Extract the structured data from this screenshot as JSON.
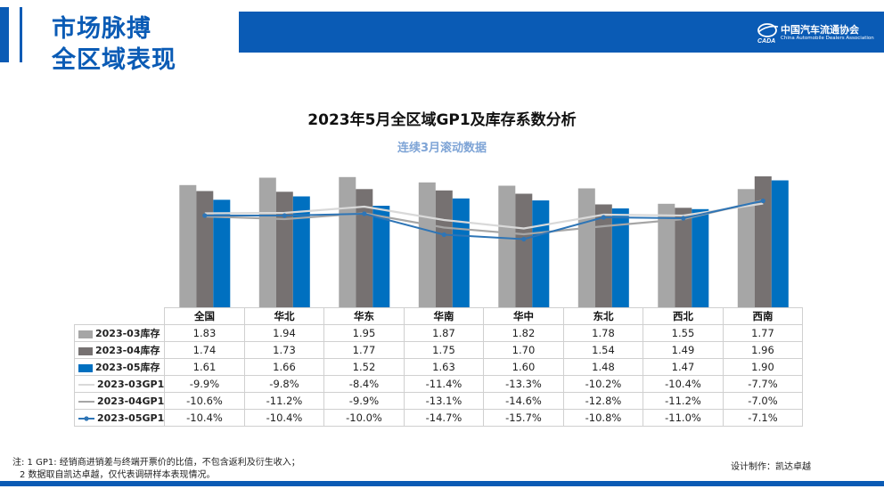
{
  "header": {
    "title_line1": "市场脉搏",
    "title_line2": "全区域表现",
    "logo_cn": "中国汽车流通协会",
    "logo_en": "China Automobile Dealers Association"
  },
  "colors": {
    "brand_blue": "#0a5bb5",
    "inv_2023_03": "#a6a6a6",
    "inv_2023_04": "#767171",
    "inv_2023_05": "#0070c0",
    "gp1_2023_03": "#d9d9d9",
    "gp1_2023_04": "#a6a6a6",
    "gp1_2023_05": "#2e75b6"
  },
  "chart_data": {
    "type": "bar",
    "title": "2023年5月全区域GP1及库存系数分析",
    "subtitle": "连续3月滚动数据",
    "categories": [
      "全国",
      "华北",
      "华东",
      "华南",
      "华中",
      "东北",
      "西北",
      "西南"
    ],
    "bar_series": [
      {
        "name": "2023-03库存",
        "values": [
          1.83,
          1.94,
          1.95,
          1.87,
          1.82,
          1.78,
          1.55,
          1.77
        ],
        "labels": [
          "1.83",
          "1.94",
          "1.95",
          "1.87",
          "1.82",
          "1.78",
          "1.55",
          "1.77"
        ]
      },
      {
        "name": "2023-04库存",
        "values": [
          1.74,
          1.73,
          1.77,
          1.75,
          1.7,
          1.54,
          1.49,
          1.96
        ],
        "labels": [
          "1.74",
          "1.73",
          "1.77",
          "1.75",
          "1.70",
          "1.54",
          "1.49",
          "1.96"
        ]
      },
      {
        "name": "2023-05库存",
        "values": [
          1.61,
          1.66,
          1.52,
          1.63,
          1.6,
          1.48,
          1.47,
          1.9
        ],
        "labels": [
          "1.61",
          "1.66",
          "1.52",
          "1.63",
          "1.60",
          "1.48",
          "1.47",
          "1.90"
        ]
      }
    ],
    "line_series": [
      {
        "name": "2023-03GP1",
        "values": [
          -9.9,
          -9.8,
          -8.4,
          -11.4,
          -13.3,
          -10.2,
          -10.4,
          -7.7
        ],
        "labels": [
          "-9.9%",
          "-9.8%",
          "-8.4%",
          "-11.4%",
          "-13.3%",
          "-10.2%",
          "-10.4%",
          "-7.7%"
        ]
      },
      {
        "name": "2023-04GP1",
        "values": [
          -10.6,
          -11.2,
          -9.9,
          -13.1,
          -14.6,
          -12.8,
          -11.2,
          -7.0
        ],
        "labels": [
          "-10.6%",
          "-11.2%",
          "-9.9%",
          "-13.1%",
          "-14.6%",
          "-12.8%",
          "-11.2%",
          "-7.0%"
        ]
      },
      {
        "name": "2023-05GP1",
        "values": [
          -10.4,
          -10.4,
          -10.0,
          -14.7,
          -15.7,
          -10.8,
          -11.0,
          -7.1
        ],
        "labels": [
          "-10.4%",
          "-10.4%",
          "-10.0%",
          "-14.7%",
          "-15.7%",
          "-10.8%",
          "-11.0%",
          "-7.1%"
        ]
      }
    ],
    "bar_axis_range": [
      0,
      2.0
    ],
    "line_axis_range": [
      -30,
      -5
    ],
    "legend": "data table below chart"
  },
  "footnotes": {
    "line1": "注: 1  GP1: 经销商进销差与终端开票价的比值，不包含返利及衍生收入；",
    "line2": "2 数据取自凯达卓越，仅代表调研样本表现情况。",
    "designer": "设计制作：凯达卓越"
  }
}
